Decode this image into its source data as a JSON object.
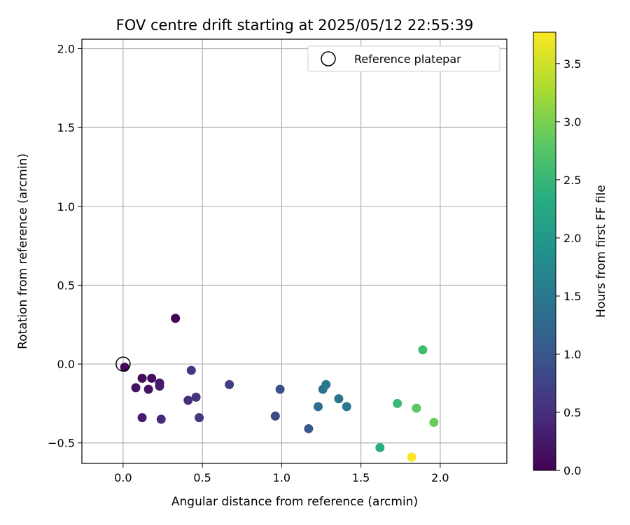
{
  "chart_data": {
    "type": "scatter",
    "title": "FOV centre drift starting at 2025/05/12 22:55:39",
    "xlabel": "Angular distance from reference (arcmin)",
    "ylabel": "Rotation from reference (arcmin)",
    "xlim": [
      -0.26,
      2.42
    ],
    "ylim": [
      -0.63,
      2.06
    ],
    "xticks": [
      0.0,
      0.5,
      1.0,
      1.5,
      2.0
    ],
    "xtick_labels": [
      "0.0",
      "0.5",
      "1.0",
      "1.5",
      "2.0"
    ],
    "yticks": [
      -0.5,
      0.0,
      0.5,
      1.0,
      1.5,
      2.0
    ],
    "ytick_labels": [
      "−0.5",
      "0.0",
      "0.5",
      "1.0",
      "1.5",
      "2.0"
    ],
    "grid": true,
    "legend": {
      "position": "top-right",
      "entries": [
        "Reference platepar"
      ]
    },
    "reference": {
      "x": 0.0,
      "y": 0.0
    },
    "colorbar": {
      "label": "Hours from first FF file",
      "colormap": "viridis",
      "range": [
        0.0,
        3.77
      ],
      "ticks": [
        0.0,
        0.5,
        1.0,
        1.5,
        2.0,
        2.5,
        3.0,
        3.5
      ],
      "tick_labels": [
        "0.0",
        "0.5",
        "1.0",
        "1.5",
        "2.0",
        "2.5",
        "3.0",
        "3.5"
      ]
    },
    "points": [
      {
        "x": 0.01,
        "y": -0.02,
        "hours": 0.05
      },
      {
        "x": 0.33,
        "y": 0.29,
        "hours": 0.02
      },
      {
        "x": 0.12,
        "y": -0.09,
        "hours": 0.12
      },
      {
        "x": 0.18,
        "y": -0.09,
        "hours": 0.15
      },
      {
        "x": 0.08,
        "y": -0.15,
        "hours": 0.18
      },
      {
        "x": 0.16,
        "y": -0.16,
        "hours": 0.2
      },
      {
        "x": 0.23,
        "y": -0.12,
        "hours": 0.25
      },
      {
        "x": 0.23,
        "y": -0.14,
        "hours": 0.3
      },
      {
        "x": 0.12,
        "y": -0.34,
        "hours": 0.28
      },
      {
        "x": 0.24,
        "y": -0.35,
        "hours": 0.45
      },
      {
        "x": 0.41,
        "y": -0.23,
        "hours": 0.5
      },
      {
        "x": 0.46,
        "y": -0.21,
        "hours": 0.55
      },
      {
        "x": 0.43,
        "y": -0.04,
        "hours": 0.6
      },
      {
        "x": 0.48,
        "y": -0.34,
        "hours": 0.58
      },
      {
        "x": 0.67,
        "y": -0.13,
        "hours": 0.7
      },
      {
        "x": 0.96,
        "y": -0.33,
        "hours": 0.8
      },
      {
        "x": 0.99,
        "y": -0.16,
        "hours": 0.9
      },
      {
        "x": 1.17,
        "y": -0.41,
        "hours": 1.05
      },
      {
        "x": 1.23,
        "y": -0.27,
        "hours": 1.35
      },
      {
        "x": 1.26,
        "y": -0.16,
        "hours": 1.4
      },
      {
        "x": 1.28,
        "y": -0.13,
        "hours": 1.5
      },
      {
        "x": 1.36,
        "y": -0.22,
        "hours": 1.45
      },
      {
        "x": 1.41,
        "y": -0.27,
        "hours": 1.5
      },
      {
        "x": 1.62,
        "y": -0.53,
        "hours": 2.35
      },
      {
        "x": 1.73,
        "y": -0.25,
        "hours": 2.55
      },
      {
        "x": 1.85,
        "y": -0.28,
        "hours": 2.8
      },
      {
        "x": 1.89,
        "y": 0.09,
        "hours": 2.6
      },
      {
        "x": 1.96,
        "y": -0.37,
        "hours": 2.9
      },
      {
        "x": 1.82,
        "y": -0.59,
        "hours": 3.77
      }
    ]
  }
}
